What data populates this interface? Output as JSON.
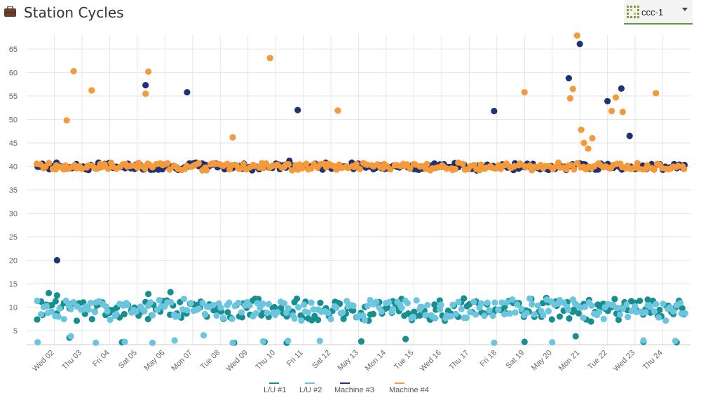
{
  "header": {
    "title": "Station Cycles",
    "title_icon": "briefcase-icon",
    "selector": {
      "icon": "grid-logo-icon",
      "value": "ccc-1"
    }
  },
  "colors": {
    "lu1": "#178f8f",
    "lu2": "#6cc5de",
    "m3": "#1f3272",
    "m4": "#f59a3a",
    "grid": "#e6e6e6",
    "selector_underline": "#5a9a3a"
  },
  "chart_data": {
    "type": "scatter",
    "title": "",
    "xlabel": "",
    "ylabel": "",
    "ylim": [
      2,
      68
    ],
    "yticks": [
      5,
      10,
      15,
      20,
      25,
      30,
      35,
      40,
      45,
      50,
      55,
      60,
      65
    ],
    "grid": true,
    "legend_position": "bottom",
    "xtick_labels": [
      "Wed 02",
      "Thu 03",
      "Fri 04",
      "Sat 05",
      "May 06",
      "Mon 07",
      "Tue 08",
      "Wed 09",
      "Thu 10",
      "Fri 11",
      "Sat 12",
      "May 13",
      "Mon 14",
      "Tue 15",
      "Wed 16",
      "Thu 17",
      "Fri 18",
      "Sat 19",
      "May 20",
      "Mon 21",
      "Tue 22",
      "Wed 23",
      "Thu 24"
    ],
    "x_range_days": [
      0.35,
      23.9
    ],
    "baseline_bands": {
      "L/U #1": {
        "center": 9.5,
        "spread": 4,
        "days": [
          0.4,
          23.8
        ]
      },
      "L/U #2": {
        "center": 9.5,
        "spread": 4,
        "days": [
          0.4,
          23.8
        ]
      },
      "Machine #3": {
        "center": 40,
        "spread": 1.4,
        "days": [
          0.4,
          23.8
        ]
      },
      "Machine #4": {
        "center": 40,
        "spread": 1.4,
        "days": [
          0.4,
          23.8
        ]
      }
    },
    "series": [
      {
        "name": "L/U #1",
        "outliers": [
          [
            1.55,
            3.5
          ],
          [
            0.8,
            13
          ],
          [
            5.2,
            13.2
          ],
          [
            1.1,
            12.5
          ],
          [
            4.4,
            12.8
          ],
          [
            21.4,
            7.3
          ],
          [
            8.6,
            2.6
          ],
          [
            13.7,
            3.2
          ],
          [
            19.85,
            3.8
          ],
          [
            9.4,
            2.4
          ],
          [
            12.1,
            2.7
          ],
          [
            3.45,
            2.5
          ],
          [
            7.5,
            2.4
          ],
          [
            18.0,
            2.6
          ],
          [
            22.3,
            2.6
          ],
          [
            23.5,
            2.5
          ]
        ]
      },
      {
        "name": "L/U #2",
        "outliers": [
          [
            0.4,
            2.5
          ],
          [
            1.6,
            3.8
          ],
          [
            2.5,
            2.4
          ],
          [
            3.55,
            2.6
          ],
          [
            4.55,
            2.4
          ],
          [
            5.35,
            2.9
          ],
          [
            6.4,
            4.0
          ],
          [
            8.55,
            2.7
          ],
          [
            9.45,
            2.8
          ],
          [
            10.6,
            2.8
          ],
          [
            16.9,
            2.4
          ],
          [
            19.0,
            2.5
          ],
          [
            22.3,
            2.9
          ],
          [
            23.45,
            2.8
          ],
          [
            7.45,
            2.4
          ]
        ]
      },
      {
        "name": "Machine #3",
        "outliers": [
          [
            1.1,
            20.0
          ],
          [
            4.3,
            57.3
          ],
          [
            5.8,
            55.8
          ],
          [
            9.8,
            52.0
          ],
          [
            16.9,
            51.8
          ],
          [
            19.6,
            58.8
          ],
          [
            20.0,
            66.1
          ],
          [
            21.0,
            53.9
          ],
          [
            21.5,
            56.6
          ],
          [
            21.8,
            46.5
          ],
          [
            9.5,
            41.2
          ],
          [
            2.6,
            40.8
          ]
        ]
      },
      {
        "name": "Machine #4",
        "outliers": [
          [
            1.45,
            49.8
          ],
          [
            1.7,
            60.3
          ],
          [
            2.35,
            56.2
          ],
          [
            4.3,
            55.5
          ],
          [
            4.4,
            60.2
          ],
          [
            7.45,
            46.2
          ],
          [
            8.8,
            63.1
          ],
          [
            11.25,
            51.9
          ],
          [
            18.0,
            55.8
          ],
          [
            19.65,
            54.5
          ],
          [
            19.75,
            56.5
          ],
          [
            19.9,
            67.9
          ],
          [
            20.05,
            47.8
          ],
          [
            20.15,
            45.0
          ],
          [
            20.3,
            43.8
          ],
          [
            20.45,
            46.0
          ],
          [
            21.15,
            51.8
          ],
          [
            21.3,
            54.7
          ],
          [
            21.55,
            51.6
          ],
          [
            22.75,
            55.6
          ]
        ]
      }
    ]
  },
  "legend": [
    {
      "label": "L/U #1",
      "color_key": "lu1"
    },
    {
      "label": "L/U #2",
      "color_key": "lu2"
    },
    {
      "label": "Machine #3",
      "color_key": "m3"
    },
    {
      "label": "Machine #4",
      "color_key": "m4"
    }
  ]
}
